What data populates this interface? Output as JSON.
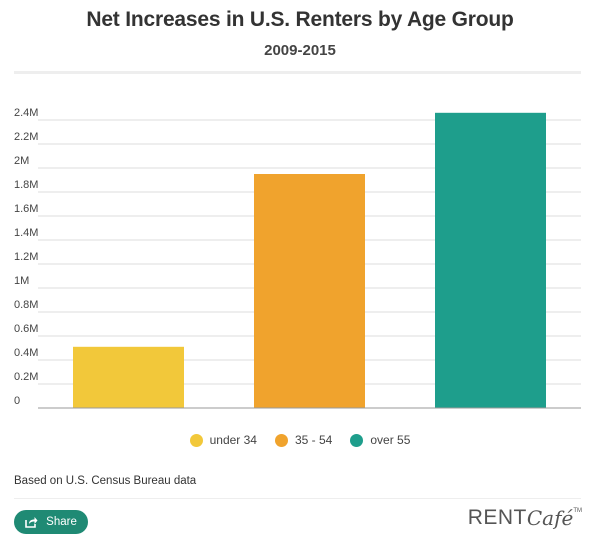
{
  "header": {
    "title": "Net Increases in U.S. Renters by Age Group",
    "subtitle": "2009-2015"
  },
  "chart_data": {
    "type": "bar",
    "categories": [
      "under 34",
      "35 - 54",
      "over 55"
    ],
    "values": [
      510000,
      1950000,
      2460000
    ],
    "colors": [
      "#f2c83a",
      "#f0a32d",
      "#1e9e8c"
    ],
    "ylim": [
      0,
      2400000
    ],
    "y_ticks": [
      0,
      200000,
      400000,
      600000,
      800000,
      1000000,
      1200000,
      1400000,
      1600000,
      1800000,
      2000000,
      2200000,
      2400000
    ],
    "y_tick_labels": [
      "0",
      "0.2M",
      "0.4M",
      "0.6M",
      "0.8M",
      "1M",
      "1.2M",
      "1.4M",
      "1.6M",
      "1.8M",
      "2M",
      "2.2M",
      "2.4M"
    ],
    "grid": true,
    "legend_position": "bottom"
  },
  "legend": {
    "items": [
      {
        "label": "under 34",
        "color": "#f2c83a"
      },
      {
        "label": "35 - 54",
        "color": "#f0a32d"
      },
      {
        "label": "over 55",
        "color": "#1e9e8c"
      }
    ]
  },
  "footer": {
    "source": "Based on U.S. Census Bureau data",
    "share_label": "Share",
    "logo_main": "RENT",
    "logo_script": "Café",
    "logo_tm": "TM"
  },
  "icons": {
    "share": "share-icon"
  }
}
